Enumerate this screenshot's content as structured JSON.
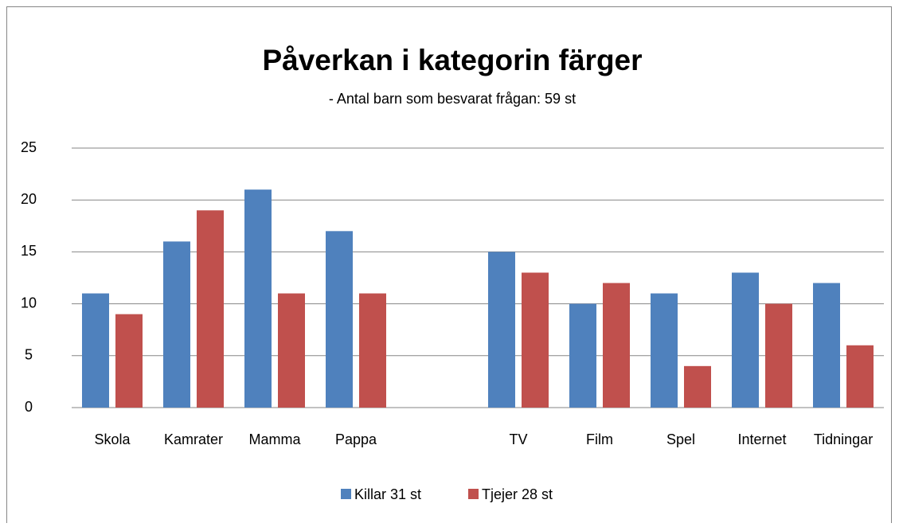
{
  "chart_data": {
    "type": "bar",
    "title": "Påverkan i kategorin färger",
    "subtitle": "- Antal barn som besvarat frågan: 59 st",
    "categories": [
      "Skola",
      "Kamrater",
      "Mamma",
      "Pappa",
      null,
      "TV",
      "Film",
      "Spel",
      "Internet",
      "Tidningar"
    ],
    "series": [
      {
        "name": "Killar 31 st",
        "color": "#4f81bd",
        "values": [
          11,
          16,
          21,
          17,
          null,
          15,
          10,
          11,
          13,
          12
        ]
      },
      {
        "name": "Tjejer 28 st",
        "color": "#c0504d",
        "values": [
          9,
          19,
          11,
          11,
          null,
          13,
          12,
          4,
          10,
          6
        ]
      }
    ],
    "ylim": [
      0,
      25
    ],
    "yticks": [
      0,
      5,
      10,
      15,
      20,
      25
    ],
    "grid": true,
    "legend": "bottom"
  }
}
